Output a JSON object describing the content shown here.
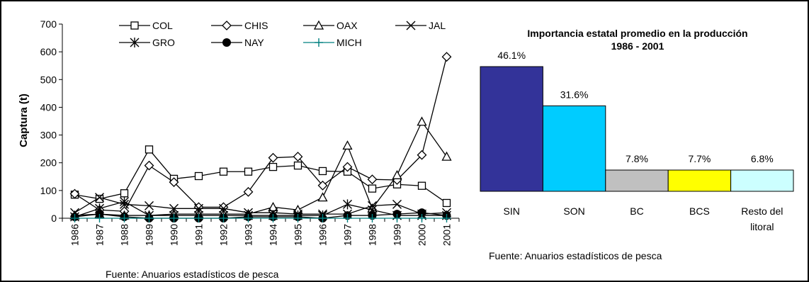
{
  "chart_data": [
    {
      "type": "line",
      "title": "",
      "xlabel": "",
      "ylabel": "Captura (t)",
      "ylim": [
        0,
        700
      ],
      "yticks": [
        0,
        100,
        200,
        300,
        400,
        500,
        600,
        700
      ],
      "x": [
        "1986",
        "1987",
        "1988",
        "1989",
        "1990",
        "1991",
        "1992",
        "1993",
        "1994",
        "1995",
        "1996",
        "1997",
        "1998",
        "1999",
        "2000",
        "2001"
      ],
      "legend_position": "top",
      "grid": false,
      "series": [
        {
          "name": "COL",
          "marker": "square",
          "color": "#000000",
          "values": [
            85,
            70,
            90,
            248,
            142,
            152,
            168,
            168,
            185,
            190,
            170,
            168,
            107,
            122,
            117,
            55
          ]
        },
        {
          "name": "CHIS",
          "marker": "diamond",
          "color": "#000000",
          "values": [
            88,
            30,
            25,
            190,
            130,
            40,
            40,
            95,
            218,
            222,
            118,
            185,
            140,
            138,
            228,
            582
          ]
        },
        {
          "name": "OAX",
          "marker": "triangle",
          "color": "#000000",
          "values": [
            10,
            15,
            10,
            10,
            15,
            15,
            15,
            15,
            40,
            30,
            75,
            262,
            35,
            155,
            348,
            222
          ]
        },
        {
          "name": "JAL",
          "marker": "x",
          "color": "#000000",
          "values": [
            20,
            75,
            50,
            45,
            35,
            35,
            35,
            20,
            20,
            15,
            15,
            15,
            45,
            50,
            15,
            20
          ]
        },
        {
          "name": "GRO",
          "marker": "star",
          "color": "#000000",
          "values": [
            5,
            35,
            60,
            10,
            10,
            10,
            10,
            10,
            10,
            10,
            10,
            50,
            30,
            10,
            10,
            10
          ]
        },
        {
          "name": "NAY",
          "marker": "circle",
          "color": "#000000",
          "values": [
            5,
            15,
            5,
            0,
            0,
            0,
            0,
            5,
            5,
            5,
            0,
            10,
            10,
            15,
            20,
            10
          ]
        },
        {
          "name": "MICH",
          "marker": "plus",
          "color": "#008080",
          "values": [
            0,
            0,
            0,
            0,
            0,
            0,
            0,
            0,
            0,
            0,
            0,
            0,
            0,
            0,
            0,
            0
          ]
        }
      ],
      "source": "Fuente: Anuarios estadísticos de pesca"
    },
    {
      "type": "bar",
      "title": "Importancia estatal promedio en la producción",
      "subtitle": "1986 - 2001",
      "categories": [
        "SIN",
        "SON",
        "BC",
        "BCS",
        "Resto del litoral"
      ],
      "category_lines": [
        [
          "SIN"
        ],
        [
          "SON"
        ],
        [
          "BC"
        ],
        [
          "BCS"
        ],
        [
          "Resto del",
          "litoral"
        ]
      ],
      "values": [
        46.1,
        31.6,
        7.8,
        7.7,
        6.8
      ],
      "labels": [
        "46.1%",
        "31.6%",
        "7.8%",
        "7.7%",
        "6.8%"
      ],
      "colors": [
        "#333399",
        "#00CCFF",
        "#C0C0C0",
        "#FFFF00",
        "#CCFFFF"
      ],
      "source": "Fuente: Anuarios estadísticos de pesca"
    }
  ]
}
